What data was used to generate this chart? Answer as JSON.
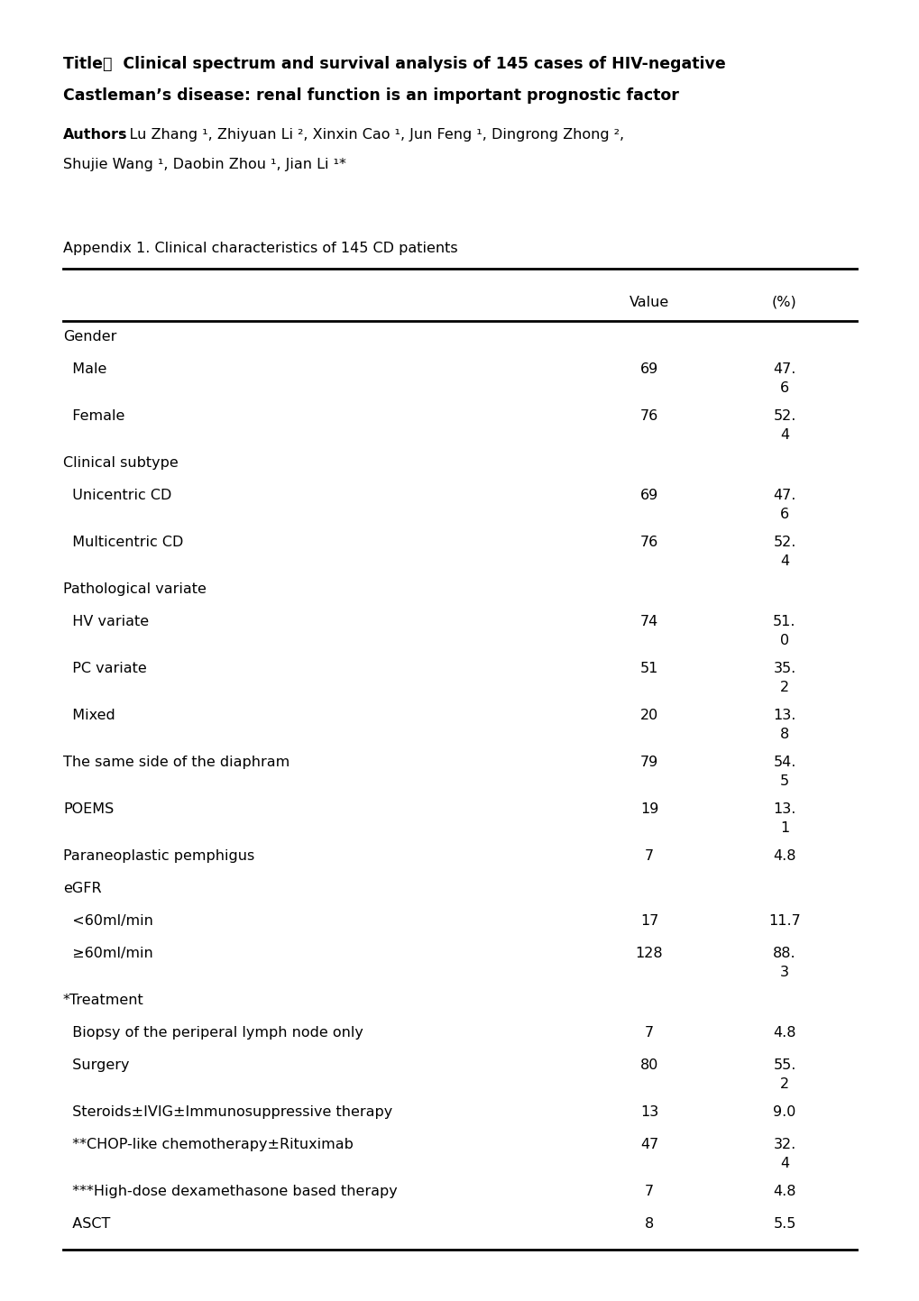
{
  "title_line1": "Title：  Clinical spectrum and survival analysis of 145 cases of HIV-negative",
  "title_line2": "Castleman’s disease: renal function is an important prognostic factor",
  "authors_label": "Authors",
  "authors_line1": ": Lu Zhang ¹, Zhiyuan Li ², Xinxin Cao ¹, Jun Feng ¹, Dingrong Zhong ²,",
  "authors_line2": "Shujie Wang ¹, Daobin Zhou ¹, Jian Li ¹*",
  "appendix_title": "Appendix 1. Clinical characteristics of 145 CD patients",
  "col_headers": [
    "Value",
    "(%)"
  ],
  "rows": [
    {
      "label": "Gender",
      "indent": 0,
      "value": "",
      "pct": ""
    },
    {
      "label": "  Male",
      "indent": 0,
      "value": "69",
      "pct": "47.\n6"
    },
    {
      "label": "  Female",
      "indent": 0,
      "value": "76",
      "pct": "52.\n4"
    },
    {
      "label": "Clinical subtype",
      "indent": 0,
      "value": "",
      "pct": ""
    },
    {
      "label": "  Unicentric CD",
      "indent": 0,
      "value": "69",
      "pct": "47.\n6"
    },
    {
      "label": "  Multicentric CD",
      "indent": 0,
      "value": "76",
      "pct": "52.\n4"
    },
    {
      "label": "Pathological variate",
      "indent": 0,
      "value": "",
      "pct": ""
    },
    {
      "label": "  HV variate",
      "indent": 0,
      "value": "74",
      "pct": "51.\n0"
    },
    {
      "label": "  PC variate",
      "indent": 0,
      "value": "51",
      "pct": "35.\n2"
    },
    {
      "label": "  Mixed",
      "indent": 0,
      "value": "20",
      "pct": "13.\n8"
    },
    {
      "label": "The same side of the diaphram",
      "indent": 0,
      "value": "79",
      "pct": "54.\n5"
    },
    {
      "label": "POEMS",
      "indent": 0,
      "value": "19",
      "pct": "13.\n1"
    },
    {
      "label": "Paraneoplastic pemphigus",
      "indent": 0,
      "value": "7",
      "pct": "4.8"
    },
    {
      "label": "eGFR",
      "indent": 0,
      "value": "",
      "pct": ""
    },
    {
      "label": "  <60ml/min",
      "indent": 0,
      "value": "17",
      "pct": "11.7"
    },
    {
      "label": "  ≥60ml/min",
      "indent": 0,
      "value": "128",
      "pct": "88.\n3"
    },
    {
      "label": "*Treatment",
      "indent": 0,
      "value": "",
      "pct": ""
    },
    {
      "label": "  Biopsy of the periperal lymph node only",
      "indent": 0,
      "value": "7",
      "pct": "4.8"
    },
    {
      "label": "  Surgery",
      "indent": 0,
      "value": "80",
      "pct": "55.\n2"
    },
    {
      "label": "  Steroids±IVIG±Immunosuppressive therapy",
      "indent": 0,
      "value": "13",
      "pct": "9.0"
    },
    {
      "label": "  **CHOP-like chemotherapy±Rituximab",
      "indent": 0,
      "value": "47",
      "pct": "32.\n4"
    },
    {
      "label": "  ***High-dose dexamethasone based therapy",
      "indent": 0,
      "value": "7",
      "pct": "4.8"
    },
    {
      "label": "  ASCT",
      "indent": 0,
      "value": "8",
      "pct": "5.5"
    }
  ],
  "bg_color": "#ffffff",
  "text_color": "#000000"
}
